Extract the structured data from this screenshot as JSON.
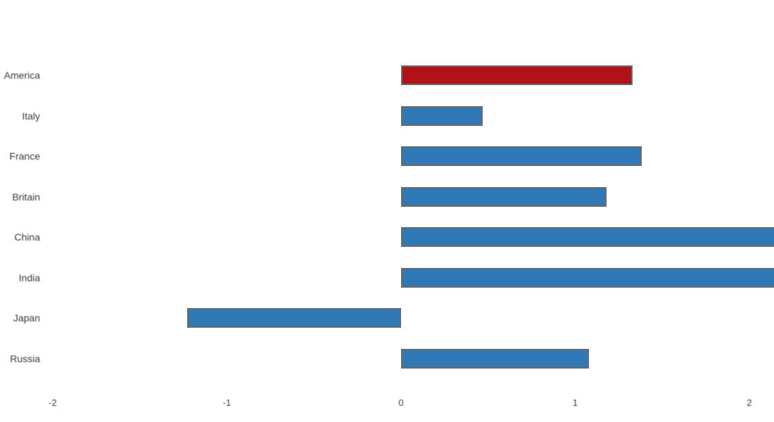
{
  "chart_data": {
    "type": "bar",
    "orientation": "horizontal",
    "title": "",
    "xlabel": "",
    "ylabel": "",
    "categories": [
      "America",
      "Italy",
      "France",
      "Britain",
      "China",
      "India",
      "Japan",
      "Russia"
    ],
    "values": [
      1.33,
      0.47,
      1.38,
      1.18,
      2.15,
      2.15,
      -1.23,
      1.08
    ],
    "highlight_index": 0,
    "x_ticks": [
      "-2",
      "-1",
      "0",
      "1",
      "2"
    ],
    "x_tick_values": [
      -2,
      -1,
      0,
      1,
      2
    ],
    "xlim": [
      -2.3,
      2.14
    ],
    "grid": false,
    "legend": false,
    "colors": {
      "default_bar": "#3079b7",
      "highlight_bar": "#b01217",
      "bar_outline": "#6a6a6a",
      "axis_text": "#3a3a3a",
      "background": "#ffffff"
    }
  }
}
